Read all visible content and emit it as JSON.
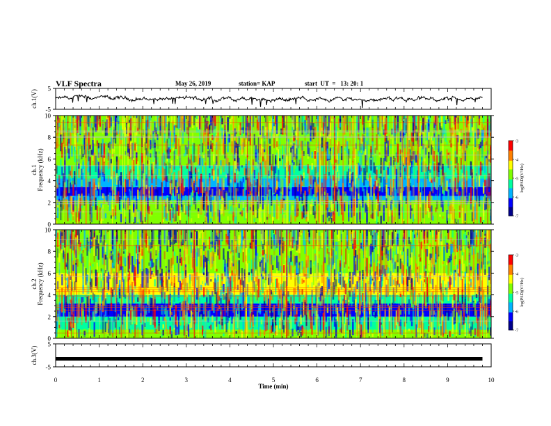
{
  "header": {
    "title": "VLF Spectra",
    "date": "May 26, 2019",
    "station": "station= KAP",
    "start_ut": "start  UT  =   13: 20: 1"
  },
  "chart_data": [
    {
      "type": "line",
      "panel": "ch1-waveform",
      "ylabel": "ch.1(V)",
      "yticklabels": [
        "5",
        "-5"
      ],
      "ylim": [
        -5,
        5
      ],
      "xlim": [
        0,
        10
      ],
      "note_series": "noisy voltage trace near 0 V for 0-9.8 min",
      "series": [
        {
          "approx_range": [
            -2.5,
            2.5
          ]
        }
      ]
    },
    {
      "type": "heatmap",
      "panel": "ch1-spectrogram",
      "ylabel": "ch.1 Frequency (kHz)",
      "yticks": [
        0,
        2,
        4,
        6,
        8,
        10
      ],
      "ylim": [
        0,
        10
      ],
      "xlim": [
        0,
        10
      ],
      "colorbar": {
        "label": "log(PSD)(V²/Hz)",
        "ticks": [
          -3,
          -4,
          -5,
          -6,
          -7
        ],
        "range": [
          -7,
          -3
        ]
      },
      "bands": [
        {
          "f": [
            0,
            0.8
          ],
          "level": -4.6
        },
        {
          "f": [
            0.8,
            2.2
          ],
          "level": -5.0
        },
        {
          "f": [
            2.2,
            2.6
          ],
          "level": -5.6
        },
        {
          "f": [
            2.6,
            3.4
          ],
          "level": -6.5
        },
        {
          "f": [
            3.4,
            4.2
          ],
          "level": -5.6
        },
        {
          "f": [
            4.2,
            5.4
          ],
          "level": -5.2
        },
        {
          "f": [
            5.4,
            7.0
          ],
          "level": -4.8
        },
        {
          "f": [
            7.0,
            10.0
          ],
          "level": -4.6
        }
      ]
    },
    {
      "type": "heatmap",
      "panel": "ch2-spectrogram",
      "ylabel": "ch.2 Frequency (kHz)",
      "yticks": [
        0,
        2,
        4,
        6,
        8,
        10
      ],
      "ylim": [
        0,
        10
      ],
      "xlim": [
        0,
        10
      ],
      "colorbar": {
        "label": "log(PSD)(V²/Hz)",
        "ticks": [
          -3,
          -4,
          -5,
          -6,
          -7
        ],
        "range": [
          -7,
          -3
        ]
      },
      "bands": [
        {
          "f": [
            0,
            0.8
          ],
          "level": -4.7
        },
        {
          "f": [
            0.8,
            2.0
          ],
          "level": -5.2
        },
        {
          "f": [
            2.0,
            3.2
          ],
          "level": -6.5
        },
        {
          "f": [
            3.2,
            4.0
          ],
          "level": -5.4
        },
        {
          "f": [
            4.0,
            6.0
          ],
          "level": -4.5
        },
        {
          "f": [
            6.0,
            10.0
          ],
          "level": -4.6
        }
      ]
    },
    {
      "type": "line",
      "panel": "ch3-waveform",
      "ylabel": "ch.3(V)",
      "yticklabels": [
        "5",
        "-5"
      ],
      "ylim": [
        -5,
        5
      ],
      "xlim": [
        0,
        10
      ],
      "series": [
        {
          "constant": -1.5
        }
      ]
    }
  ],
  "xaxis": {
    "label": "Time (min)",
    "ticks": [
      "0",
      "1",
      "2",
      "3",
      "4",
      "5",
      "6",
      "7",
      "8",
      "9",
      "10"
    ]
  },
  "colors": {
    "colormap": [
      "#00008b",
      "#0000ff",
      "#00b4ff",
      "#00ffa0",
      "#80ff00",
      "#ffff00",
      "#ff8000",
      "#ff0000",
      "#ffffff"
    ]
  }
}
